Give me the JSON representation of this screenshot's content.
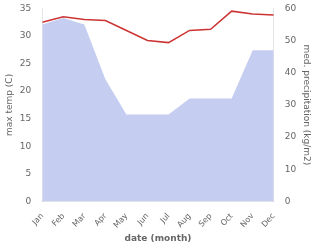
{
  "chart_data": {
    "type": "line",
    "xlabel": "date (month)",
    "ylabel": "max temp (C)",
    "y2label": "med. precipitation (kg/m2)",
    "categories": [
      "Jan",
      "Feb",
      "Mar",
      "Apr",
      "May",
      "Jun",
      "Jul",
      "Aug",
      "Sep",
      "Oct",
      "Nov",
      "Dec"
    ],
    "series": [
      {
        "type": "area",
        "axis": "y2",
        "color": "#c5cef0",
        "values": [
          55,
          57,
          55,
          38,
          27,
          27,
          27,
          32,
          32,
          32,
          47,
          47
        ]
      },
      {
        "type": "line",
        "color": "#cc3333",
        "values": [
          32.5,
          33.5,
          33.0,
          32.8,
          31.0,
          29.2,
          28.8,
          31.0,
          31.2,
          34.5,
          34.0,
          33.8
        ]
      }
    ],
    "ylim": [
      0,
      35
    ],
    "yticks": [
      0,
      5,
      10,
      15,
      20,
      25,
      30,
      35
    ],
    "y2lim": [
      0,
      60
    ],
    "y2ticks": [
      0,
      10,
      20,
      30,
      40,
      50,
      60
    ],
    "grid": false
  }
}
